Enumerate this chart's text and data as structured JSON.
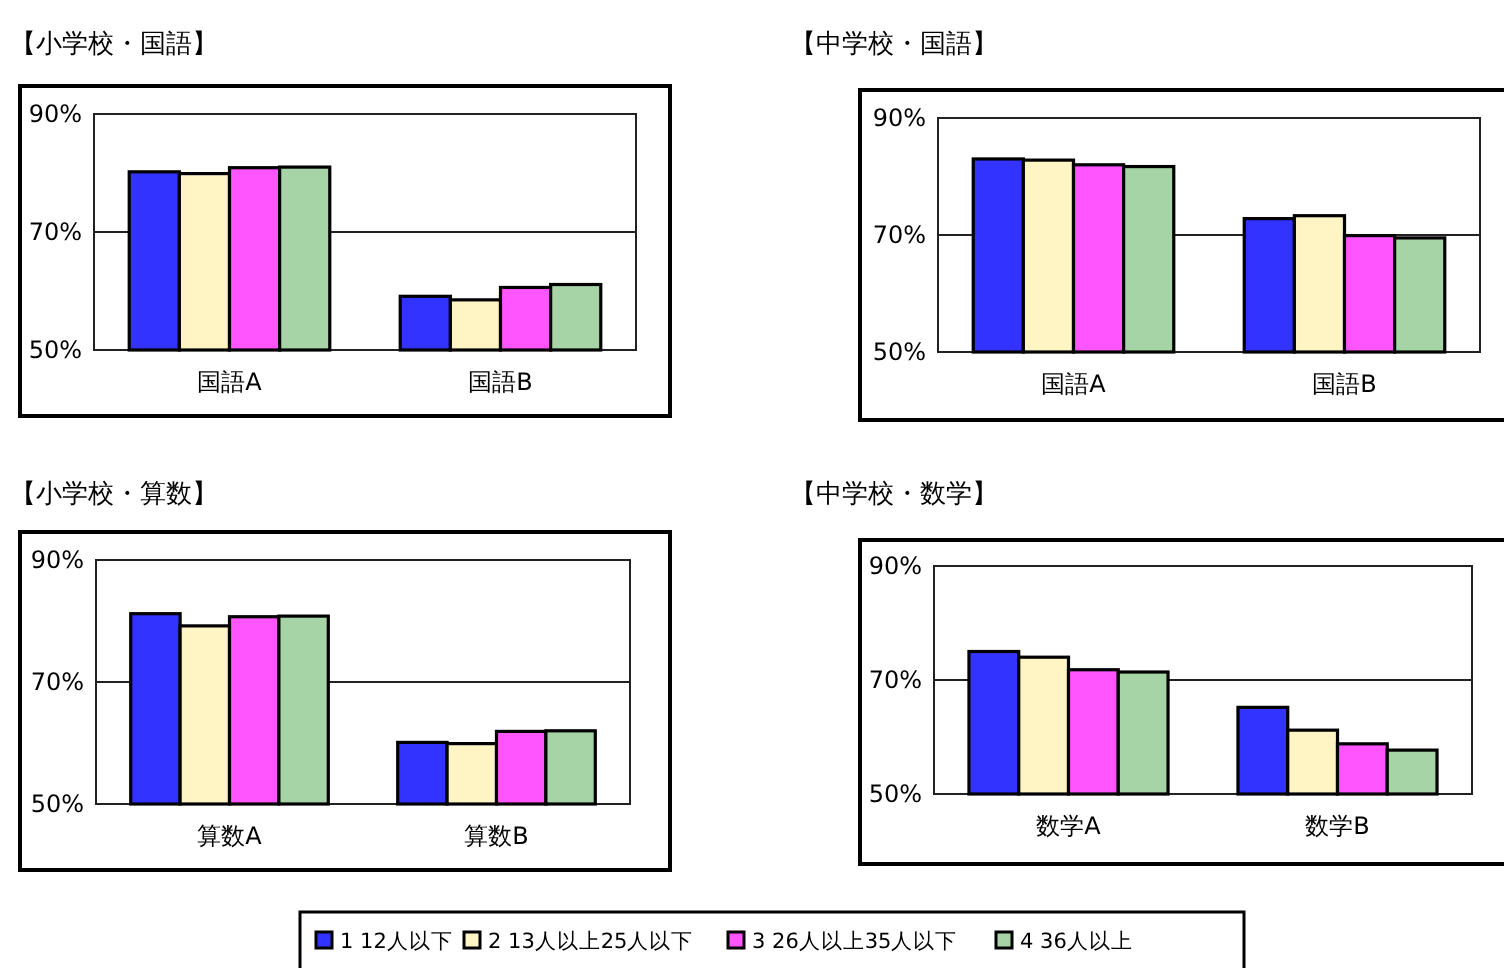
{
  "chart_data": [
    {
      "type": "bar",
      "title": "【小学校・国語】",
      "categories": [
        "国語A",
        "国語B"
      ],
      "ylim": [
        50,
        90
      ],
      "yticks": [
        {
          "value": 50,
          "label": "50%"
        },
        {
          "value": 70,
          "label": "70%"
        },
        {
          "value": 90,
          "label": "90%"
        }
      ],
      "grid": "y",
      "legend": "bottom",
      "series": [
        {
          "name": "1  12人以下",
          "color": "#3333ff",
          "values": [
            80.2,
            59.1
          ]
        },
        {
          "name": "2  13人以上25人以下",
          "color": "#fff4c4",
          "values": [
            79.9,
            58.5
          ]
        },
        {
          "name": "3  26人以上35人以下",
          "color": "#ff55ff",
          "values": [
            80.9,
            60.6
          ]
        },
        {
          "name": "4  36人以上",
          "color": "#a6d4a6",
          "values": [
            81.0,
            61.1
          ]
        }
      ]
    },
    {
      "type": "bar",
      "title": "【中学校・国語】",
      "categories": [
        "国語A",
        "国語B"
      ],
      "ylim": [
        50,
        90
      ],
      "yticks": [
        {
          "value": 50,
          "label": "50%"
        },
        {
          "value": 70,
          "label": "70%"
        },
        {
          "value": 90,
          "label": "90%"
        }
      ],
      "grid": "y",
      "series": [
        {
          "color": "#3333ff",
          "values": [
            83.0,
            72.8
          ]
        },
        {
          "color": "#fff4c4",
          "values": [
            82.8,
            73.3
          ]
        },
        {
          "color": "#ff55ff",
          "values": [
            82.0,
            69.9
          ]
        },
        {
          "color": "#a6d4a6",
          "values": [
            81.7,
            69.5
          ]
        }
      ]
    },
    {
      "type": "bar",
      "title": "【小学校・算数】",
      "categories": [
        "算数A",
        "算数B"
      ],
      "ylim": [
        50,
        90
      ],
      "yticks": [
        {
          "value": 50,
          "label": "50%"
        },
        {
          "value": 70,
          "label": "70%"
        },
        {
          "value": 90,
          "label": "90%"
        }
      ],
      "grid": "y",
      "series": [
        {
          "color": "#3333ff",
          "values": [
            81.2,
            60.1
          ]
        },
        {
          "color": "#fff4c4",
          "values": [
            79.2,
            59.9
          ]
        },
        {
          "color": "#ff55ff",
          "values": [
            80.7,
            61.9
          ]
        },
        {
          "color": "#a6d4a6",
          "values": [
            80.8,
            62.0
          ]
        }
      ]
    },
    {
      "type": "bar",
      "title": "【中学校・数学】",
      "categories": [
        "数学A",
        "数学B"
      ],
      "ylim": [
        50,
        90
      ],
      "yticks": [
        {
          "value": 50,
          "label": "50%"
        },
        {
          "value": 70,
          "label": "70%"
        },
        {
          "value": 90,
          "label": "90%"
        }
      ],
      "grid": "y",
      "series": [
        {
          "color": "#3333ff",
          "values": [
            75.0,
            65.2
          ]
        },
        {
          "color": "#fff4c4",
          "values": [
            74.0,
            61.2
          ]
        },
        {
          "color": "#ff55ff",
          "values": [
            71.8,
            58.8
          ]
        },
        {
          "color": "#a6d4a6",
          "values": [
            71.4,
            57.7
          ]
        }
      ]
    }
  ]
}
